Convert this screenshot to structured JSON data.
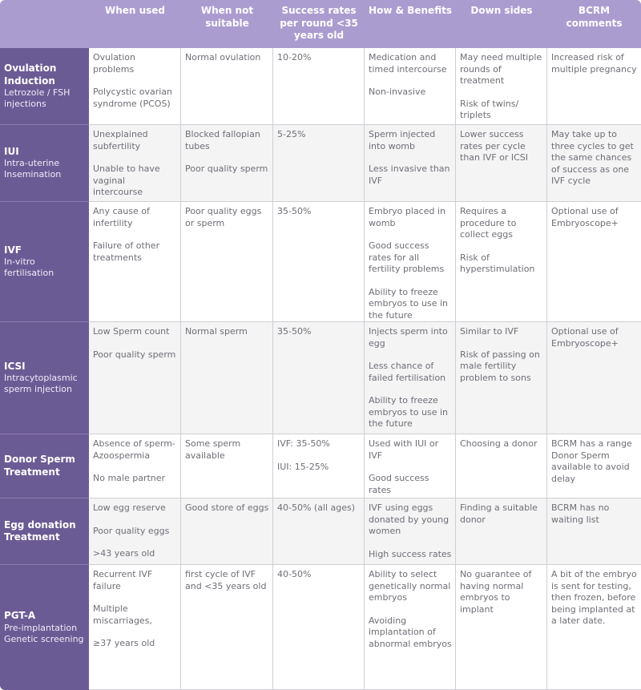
{
  "headers": [
    "",
    "When used",
    "When not suitable",
    "Success rates per round <35 years old",
    "How & Benefits",
    "Down sides",
    "BCRM comments"
  ],
  "rows": [
    {
      "title": "Ovulation Induction",
      "subtitle": "Letrozole / FSH injections",
      "cells": [
        [
          "Ovulation problems",
          "Polycystic ovarian syndrome (PCOS)"
        ],
        [
          "Normal ovulation"
        ],
        [
          "10-20%"
        ],
        [
          "Medication and timed intercourse",
          "Non-invasive"
        ],
        [
          "May need multiple rounds of treatment",
          "Risk of twins/ triplets"
        ],
        [
          "Increased risk of multiple pregnancy"
        ]
      ]
    },
    {
      "title": "IUI",
      "subtitle": "Intra-uterine Insemination",
      "cells": [
        [
          "Unexplained subfertility",
          "Unable to have vaginal intercourse"
        ],
        [
          "Blocked fallopian tubes",
          "Poor quality sperm"
        ],
        [
          "5-25%"
        ],
        [
          "Sperm injected into womb",
          "Less invasive than IVF"
        ],
        [
          "Lower success rates per cycle than IVF or ICSI"
        ],
        [
          "May take up to three cycles to get the same chances of success as one IVF cycle"
        ]
      ]
    },
    {
      "title": "IVF",
      "subtitle": "In-vitro fertilisation",
      "cells": [
        [
          "Any cause of infertility",
          "Failure of other treatments"
        ],
        [
          "Poor quality eggs or sperm"
        ],
        [
          "35-50%"
        ],
        [
          "Embryo placed in womb",
          "Good success rates for all fertility problems",
          "Ability to freeze embryos to use in the future"
        ],
        [
          "Requires a procedure to collect eggs",
          "Risk of hyperstimulation"
        ],
        [
          "Optional use of Embryoscope+"
        ]
      ]
    },
    {
      "title": "ICSI",
      "subtitle": "Intracytoplasmic sperm injection",
      "cells": [
        [
          "Low Sperm count",
          "Poor quality sperm"
        ],
        [
          "Normal sperm"
        ],
        [
          "35-50%"
        ],
        [
          "Injects sperm into egg",
          "Less chance of failed fertilisation",
          "Ability to freeze embryos to use in the future"
        ],
        [
          "Similar to IVF",
          "Risk of passing on male fertility problem to sons"
        ],
        [
          "Optional use of Embryoscope+"
        ]
      ]
    },
    {
      "title": "Donor Sperm Treatment",
      "subtitle": "",
      "cells": [
        [
          "Absence of sperm- Azoospermia",
          "No male partner"
        ],
        [
          "Some sperm available"
        ],
        [
          "IVF: 35-50%",
          "IUI: 15-25%"
        ],
        [
          "Used with IUI or IVF",
          "Good success rates"
        ],
        [
          "Choosing a donor"
        ],
        [
          "BCRM has a range Donor Sperm available to avoid delay"
        ]
      ]
    },
    {
      "title": "Egg donation Treatment",
      "subtitle": "",
      "cells": [
        [
          "Low egg reserve",
          "Poor quality eggs",
          ">43 years old"
        ],
        [
          "Good store of eggs"
        ],
        [
          "40-50% (all ages)"
        ],
        [
          "IVF using eggs donated by young women",
          "High success rates"
        ],
        [
          "Finding a suitable donor"
        ],
        [
          "BCRM has no waiting list"
        ]
      ]
    },
    {
      "title": "PGT-A",
      "subtitle": "Pre-implantation Genetic screening",
      "cells": [
        [
          "Recurrent IVF failure",
          "Multiple miscarriages,",
          "≥37 years old"
        ],
        [
          "first cycle of IVF and <35 years old"
        ],
        [
          "40-50%"
        ],
        [
          "Ability to select genetically normal embryos",
          "Avoiding implantation of abnormal embryos"
        ],
        [
          "No guarantee of having normal embryos to implant"
        ],
        [
          "A bit of the embryo is sent for testing, then frozen, before being implanted at a later date."
        ]
      ]
    }
  ]
}
